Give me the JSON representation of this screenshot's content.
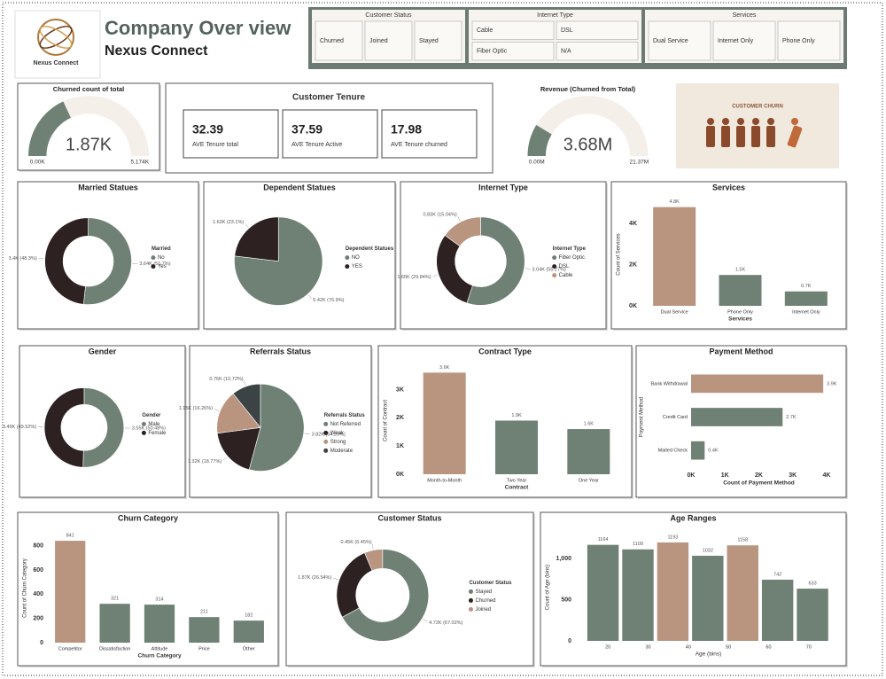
{
  "header": {
    "logo_text": "Nexus Connect",
    "title": "Company Over view",
    "subtitle": "Nexus Connect"
  },
  "slicers": [
    {
      "title": "Customer Status",
      "items": [
        "Churned",
        "Joined",
        "Stayed"
      ]
    },
    {
      "title": "Internet Type",
      "items": [
        "Cable",
        "DSL",
        "Fiber Optic",
        "N/A"
      ]
    },
    {
      "title": "Services",
      "items": [
        "Dual Service",
        "Internet Only",
        "Phone Only"
      ]
    }
  ],
  "tenure": {
    "title": "Customer Tenure",
    "cards": [
      {
        "value": 32.39,
        "label": "AVE Tenure total"
      },
      {
        "value": 37.59,
        "label": "AVE Tenure Active"
      },
      {
        "value": 17.98,
        "label": "AVE Tenure churned"
      }
    ]
  },
  "image": {
    "caption": "CUSTOMER CHURN"
  },
  "chart_data": [
    {
      "type": "gauge",
      "title": "Churned count of total",
      "values": [
        1870
      ],
      "value_labels": [
        "1.87K"
      ],
      "ylim": [
        0,
        5174
      ],
      "yticks": [
        {
          "value": 0,
          "label": "0.00K"
        },
        {
          "value": 5174,
          "label": "5.174K"
        }
      ],
      "color": "#6f8174",
      "track_color": "#f5efea"
    },
    {
      "type": "gauge",
      "title": "Revenue (Churned from Total)",
      "values": [
        3680000
      ],
      "value_labels": [
        "3.68M"
      ],
      "ylim": [
        0,
        21370000
      ],
      "yticks": [
        {
          "value": 0,
          "label": "0.00M"
        },
        {
          "value": 21370000,
          "label": "21.37M"
        }
      ],
      "color": "#6f8174",
      "track_color": "#f5efea"
    },
    {
      "type": "donut",
      "title": "Married Statues",
      "legend_title": "Married",
      "categories": [
        "No",
        "Yes"
      ],
      "values": [
        3640,
        3400
      ],
      "value_labels": [
        "3.64K (51.7%)",
        "3.4K (48.3%)"
      ],
      "colors": [
        "#6f8174",
        "#2d2121"
      ]
    },
    {
      "type": "pie",
      "title": "Dependent Statues",
      "legend_title": "Dependent Statues",
      "categories": [
        "NO",
        "YES"
      ],
      "values": [
        5420,
        1630
      ],
      "value_labels": [
        "5.42K (76.9%)",
        "1.63K (23.1%)"
      ],
      "colors": [
        "#6f8174",
        "#2d2121"
      ]
    },
    {
      "type": "donut",
      "title": "Internet Type",
      "legend_title": "Internet Type",
      "categories": [
        "Fiber Optic",
        "DSL",
        "Cable"
      ],
      "values": [
        3040,
        1650,
        830
      ],
      "value_labels": [
        "3.04K (55.27%)",
        "1.65K (29.84%)",
        "0.83K (15.04%)"
      ],
      "colors": [
        "#6f8174",
        "#2d2121",
        "#b99580"
      ]
    },
    {
      "type": "bar",
      "title": "Services",
      "categories": [
        "Dual Service",
        "Phone Only",
        "Internet Only"
      ],
      "values": [
        4800,
        1500,
        700
      ],
      "value_labels": [
        "4.8K",
        "1.5K",
        "0.7K"
      ],
      "colors": [
        "#b99580",
        "#6f8174",
        "#6f8174"
      ],
      "ylim": [
        0,
        5000
      ],
      "yticks": [
        {
          "value": 0,
          "label": "0K"
        },
        {
          "value": 2000,
          "label": "2K"
        },
        {
          "value": 4000,
          "label": "4K"
        }
      ],
      "xlabel": "Services",
      "ylabel": "Count of Services"
    },
    {
      "type": "donut",
      "title": "Gender",
      "legend_title": "Gender",
      "categories": [
        "Male",
        "Female"
      ],
      "values": [
        3550,
        3490
      ],
      "value_labels": [
        "3.55K (50.48%)",
        "3.49K (49.52%)"
      ],
      "colors": [
        "#6f8174",
        "#2d2121"
      ]
    },
    {
      "type": "pie",
      "title": "Referrals Status",
      "legend_title": "Referrals Status",
      "categories": [
        "Not Referred",
        "Weak",
        "Strong",
        "Moderate"
      ],
      "values": [
        3820,
        1320,
        1150,
        760
      ],
      "value_labels": [
        "3.82K (54.25%)",
        "1.32K (18.77%)",
        "1.15K (16.26%)",
        "0.76K (10.72%)"
      ],
      "colors": [
        "#6f8174",
        "#2d2121",
        "#b99580",
        "#3b4345"
      ]
    },
    {
      "type": "bar",
      "title": "Contract Type",
      "categories": [
        "Month-to-Month",
        "Two Year",
        "One Year"
      ],
      "values": [
        3600,
        1900,
        1600
      ],
      "value_labels": [
        "3.6K",
        "1.9K",
        "1.6K"
      ],
      "colors": [
        "#b99580",
        "#6f8174",
        "#6f8174"
      ],
      "ylim": [
        0,
        3800
      ],
      "yticks": [
        {
          "value": 0,
          "label": "0K"
        },
        {
          "value": 1000,
          "label": "1K"
        },
        {
          "value": 2000,
          "label": "2K"
        },
        {
          "value": 3000,
          "label": "3K"
        }
      ],
      "xlabel": "Contract",
      "ylabel": "Count of Contract"
    },
    {
      "type": "bar",
      "orientation": "horizontal",
      "title": "Payment Method",
      "categories": [
        "Bank Withdrawal",
        "Credit Card",
        "Mailed Check"
      ],
      "values": [
        3900,
        2700,
        400
      ],
      "value_labels": [
        "3.9K",
        "2.7K",
        "0.4K"
      ],
      "colors": [
        "#b99580",
        "#6f8174",
        "#6f8174"
      ],
      "xlim": [
        0,
        4000
      ],
      "xticks": [
        {
          "value": 0,
          "label": "0K"
        },
        {
          "value": 1000,
          "label": "1K"
        },
        {
          "value": 2000,
          "label": "2K"
        },
        {
          "value": 3000,
          "label": "3K"
        },
        {
          "value": 4000,
          "label": "4K"
        }
      ],
      "xlabel": "Count of Payment Method",
      "ylabel": "Payment Method"
    },
    {
      "type": "bar",
      "title": "Churn Category",
      "categories": [
        "Competitor",
        "Dissatisfaction",
        "Attitude",
        "Price",
        "Other"
      ],
      "values": [
        841,
        321,
        314,
        211,
        182
      ],
      "colors": [
        "#b99580",
        "#6f8174",
        "#6f8174",
        "#6f8174",
        "#6f8174"
      ],
      "ylim": [
        0,
        900
      ],
      "yticks": [
        0,
        200,
        400,
        600,
        800
      ],
      "xlabel": "Churn Category",
      "ylabel": "Count of Churn Category"
    },
    {
      "type": "donut",
      "title": "Customer Status",
      "legend_title": "Customer Status",
      "categories": [
        "Stayed",
        "Churned",
        "Joined"
      ],
      "values": [
        4720,
        1870,
        450
      ],
      "value_labels": [
        "4.72K (67.02%)",
        "1.87K (26.54%)",
        "0.45K (6.45%)"
      ],
      "colors": [
        "#6f8174",
        "#2d2121",
        "#b99580"
      ]
    },
    {
      "type": "histogram",
      "title": "Age Ranges",
      "bins": [
        14.4,
        23.1,
        31.8,
        40.5,
        49.2,
        57.9,
        66.6,
        75.3
      ],
      "values": [
        1164,
        1109,
        1193,
        1032,
        1158,
        742,
        633
      ],
      "colors": [
        "#6f8174",
        "#6f8174",
        "#b99580",
        "#6f8174",
        "#b99580",
        "#6f8174",
        "#6f8174"
      ],
      "xlim": [
        12,
        78
      ],
      "xticks": [
        20,
        30,
        40,
        50,
        60,
        70
      ],
      "ylim": [
        0,
        1300
      ],
      "yticks": [
        0,
        500,
        {
          "value": 1000,
          "label": "1,000"
        }
      ],
      "xlabel": "Age (bins)",
      "ylabel": "Count of Age (bins)"
    }
  ]
}
